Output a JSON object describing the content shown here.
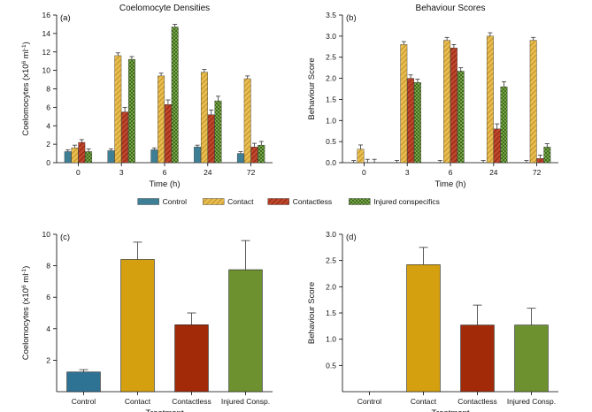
{
  "legend": {
    "placement": "center-between-rows",
    "items": [
      {
        "name": "Control",
        "color": "#3f7f95",
        "pattern": "solid"
      },
      {
        "name": "Contact",
        "color": "#e4b441",
        "pattern": "diagonal"
      },
      {
        "name": "Contactless",
        "color": "#b4321a",
        "pattern": "diagonal"
      },
      {
        "name": "Injured conspecifics",
        "color": "#6b9a3b",
        "pattern": "checker"
      }
    ]
  },
  "chart_data": [
    {
      "panel": "(a)",
      "type": "bar",
      "title": "Coelomocyte Densities",
      "xlabel": "Time (h)",
      "ylabel_main": "Coelomocytes (x10",
      "ylabel_sup1": "6",
      "ylabel_mid": " ml",
      "ylabel_sup2": "-1",
      "ylabel_end": ")",
      "ylim": [
        0,
        16
      ],
      "yticks": [
        "0",
        "2",
        "4",
        "6",
        "8",
        "10",
        "12",
        "14",
        "16"
      ],
      "categories": [
        "0",
        "3",
        "6",
        "24",
        "72"
      ],
      "series": [
        {
          "name": "Control",
          "values": [
            1.2,
            1.3,
            1.4,
            1.7,
            1.0
          ],
          "errors": [
            0.2,
            0.2,
            0.2,
            0.2,
            0.2
          ]
        },
        {
          "name": "Contact",
          "values": [
            1.6,
            11.6,
            9.4,
            9.8,
            9.1
          ],
          "errors": [
            0.3,
            0.3,
            0.3,
            0.3,
            0.3
          ]
        },
        {
          "name": "Contactless",
          "values": [
            2.2,
            5.5,
            6.3,
            5.2,
            1.7
          ],
          "errors": [
            0.3,
            0.5,
            0.5,
            0.5,
            0.4
          ]
        },
        {
          "name": "Injured conspecifics",
          "values": [
            1.2,
            11.2,
            14.7,
            6.7,
            1.9
          ],
          "errors": [
            0.3,
            0.3,
            0.3,
            0.5,
            0.4
          ]
        }
      ]
    },
    {
      "panel": "(b)",
      "type": "bar",
      "title": "Behaviour Scores",
      "xlabel": "Time (h)",
      "ylabel_main": "Behaviour Score",
      "ylim": [
        0,
        3.5
      ],
      "yticks": [
        "0.0",
        "0.5",
        "1.0",
        "1.5",
        "2.0",
        "2.5",
        "3.0",
        "3.5"
      ],
      "categories": [
        "0",
        "3",
        "6",
        "24",
        "72"
      ],
      "series": [
        {
          "name": "Control",
          "values": [
            0.0,
            0.0,
            0.0,
            0.0,
            0.0
          ],
          "errors": [
            0.05,
            0.05,
            0.05,
            0.05,
            0.05
          ]
        },
        {
          "name": "Contact",
          "values": [
            0.32,
            2.8,
            2.9,
            3.0,
            2.9
          ],
          "errors": [
            0.1,
            0.07,
            0.07,
            0.08,
            0.07
          ]
        },
        {
          "name": "Contactless",
          "values": [
            0.0,
            2.0,
            2.72,
            0.8,
            0.1
          ],
          "errors": [
            0.08,
            0.08,
            0.08,
            0.12,
            0.08
          ]
        },
        {
          "name": "Injured conspecifics",
          "values": [
            0.0,
            1.9,
            2.17,
            1.8,
            0.37
          ],
          "errors": [
            0.08,
            0.08,
            0.08,
            0.12,
            0.08
          ]
        }
      ]
    },
    {
      "panel": "(c)",
      "type": "bar",
      "title": "",
      "xlabel": "Treatment",
      "ylabel_main": "Coelomocytes (x10",
      "ylabel_sup1": "6",
      "ylabel_mid": " ml",
      "ylabel_sup2": "-1",
      "ylabel_end": ")",
      "ylim": [
        0,
        10
      ],
      "yticks": [
        "2",
        "4",
        "6",
        "8",
        "10"
      ],
      "categories": [
        "Control",
        "Contact",
        "Contactless",
        "Injured Consp."
      ],
      "values": [
        1.25,
        8.4,
        4.25,
        7.75
      ],
      "errors": [
        0.15,
        1.1,
        0.75,
        1.85
      ],
      "colors": [
        "#2f7394",
        "#d4a00f",
        "#a22a08",
        "#6d912f"
      ]
    },
    {
      "panel": "(d)",
      "type": "bar",
      "title": "",
      "xlabel": "Treatment",
      "ylabel_main": "Behaviour Score",
      "ylim": [
        0,
        3.0
      ],
      "yticks": [
        "0.5",
        "1.0",
        "1.5",
        "2.0",
        "2.5",
        "3.0"
      ],
      "categories": [
        "Control",
        "Contact",
        "Contactless",
        "Injured Consp."
      ],
      "values": [
        0.0,
        2.42,
        1.27,
        1.27
      ],
      "errors": [
        0.0,
        0.33,
        0.38,
        0.32
      ],
      "colors": [
        "#2f7394",
        "#d4a00f",
        "#a22a08",
        "#6d912f"
      ]
    }
  ]
}
